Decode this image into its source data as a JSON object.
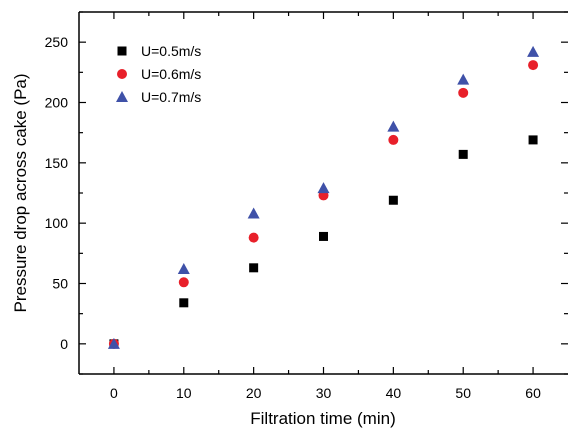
{
  "chart_data": {
    "type": "scatter",
    "title": "",
    "xlabel": "Filtration time (min)",
    "ylabel": "Pressure drop across cake (Pa)",
    "xlim": [
      -5,
      65
    ],
    "ylim": [
      -25,
      275
    ],
    "x": [
      0,
      10,
      20,
      30,
      40,
      50,
      60
    ],
    "xticks": [
      0,
      10,
      20,
      30,
      40,
      50,
      60
    ],
    "yticks": [
      0,
      50,
      100,
      150,
      200,
      250
    ],
    "grid": false,
    "legend": "top-left",
    "series": [
      {
        "name": "U=0.5m/s",
        "marker": "square",
        "color": "#000000",
        "values": [
          0,
          34,
          63,
          89,
          119,
          157,
          169
        ]
      },
      {
        "name": "U=0.6m/s",
        "marker": "circle",
        "color": "#e8202a",
        "values": [
          0,
          51,
          88,
          123,
          169,
          208,
          231
        ]
      },
      {
        "name": "U=0.7m/s",
        "marker": "triangle",
        "color": "#3f51a8",
        "values": [
          0,
          62,
          108,
          129,
          180,
          219,
          242
        ]
      }
    ]
  }
}
